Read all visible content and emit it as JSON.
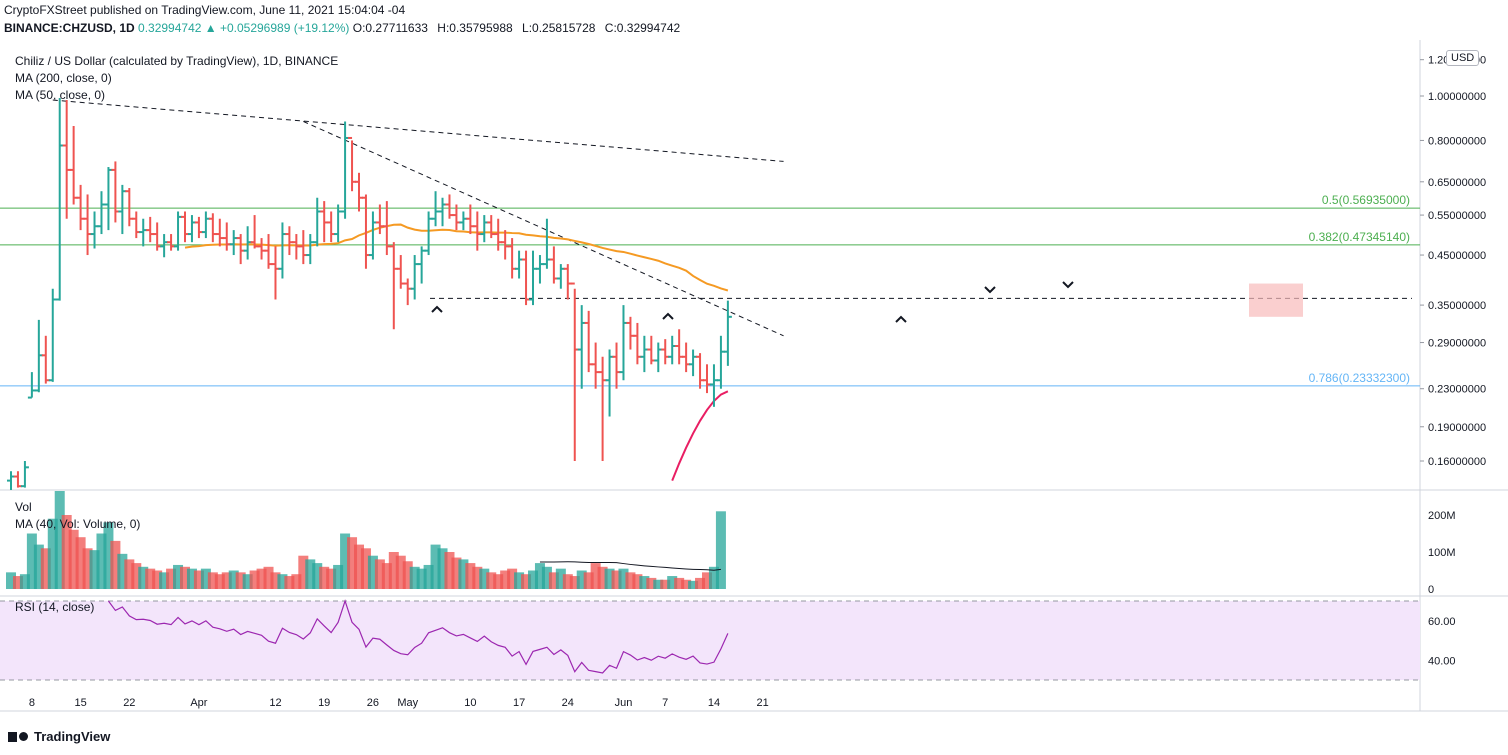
{
  "header": {
    "publish_line": "CryptoFXStreet published on TradingView.com, June 11, 2021 15:04:04 -04",
    "symbol": "BINANCE:CHZUSD, 1D",
    "change": "0.32994742 ▲ +0.05296989 (+19.12%)",
    "ohlc": {
      "o": "O:0.27711633",
      "h": "H:0.35795988",
      "l": "L:0.25815728",
      "c": "C:0.32994742"
    }
  },
  "legend": {
    "title": "Chiliz / US Dollar (calculated by TradingView), 1D, BINANCE",
    "ma200": "MA (200, close, 0)",
    "ma50": "MA (50, close, 0)",
    "vol": "Vol",
    "vol_ma": "MA (40, Vol: Volume, 0)",
    "rsi": "RSI (14, close)"
  },
  "currency": "USD",
  "brand": "TradingView",
  "colors": {
    "up": "#26a69a",
    "down": "#ef5350",
    "ma50": "#f59a23",
    "ma200": "#e91e63",
    "fib_green": "#4caf50",
    "fib_blue": "#64b5f6",
    "rsi": "#9c27b0"
  },
  "chart_data": {
    "type": "bar",
    "price_axis": {
      "scale": "log",
      "ticks": [
        0.16,
        0.19,
        0.23,
        0.29,
        0.35,
        0.45,
        0.55,
        0.65,
        0.8,
        1.0,
        1.2
      ],
      "tick_labels": [
        "0.16000000",
        "0.19000000",
        "0.23000000",
        "0.29000000",
        "0.35000000",
        "0.45000000",
        "0.55000000",
        "0.65000000",
        "0.80000000",
        "1.00000000",
        "1.20000000"
      ]
    },
    "volume_axis": {
      "ticks": [
        0,
        100,
        200
      ],
      "tick_labels": [
        "0",
        "100M",
        "200M"
      ]
    },
    "rsi_axis": {
      "ticks": [
        40,
        60
      ],
      "tick_labels": [
        "40.00",
        "60.00"
      ],
      "band": [
        30,
        70
      ]
    },
    "x_ticks": [
      {
        "label": "8",
        "date": "2021-03-08"
      },
      {
        "label": "15",
        "date": "2021-03-15"
      },
      {
        "label": "22",
        "date": "2021-03-22"
      },
      {
        "label": "Apr",
        "date": "2021-04-01"
      },
      {
        "label": "12",
        "date": "2021-04-12"
      },
      {
        "label": "19",
        "date": "2021-04-19"
      },
      {
        "label": "26",
        "date": "2021-04-26"
      },
      {
        "label": "May",
        "date": "2021-05-01"
      },
      {
        "label": "10",
        "date": "2021-05-10"
      },
      {
        "label": "17",
        "date": "2021-05-17"
      },
      {
        "label": "24",
        "date": "2021-05-24"
      },
      {
        "label": "Jun",
        "date": "2021-06-01"
      },
      {
        "label": "7",
        "date": "2021-06-07"
      },
      {
        "label": "14",
        "date": "2021-06-14"
      },
      {
        "label": "21",
        "date": "2021-06-21"
      }
    ],
    "start_date": "2021-03-05",
    "fib_levels": [
      {
        "label": "0.5(0.56935000)",
        "value": 0.56935,
        "color": "#4caf50"
      },
      {
        "label": "0.382(0.47345140)",
        "value": 0.4734514,
        "color": "#4caf50"
      },
      {
        "label": "0.786(0.23332300)",
        "value": 0.233323,
        "color": "#64b5f6"
      }
    ],
    "horizontal_support": 0.362,
    "trendlines": [
      {
        "from": [
          "2021-03-11",
          0.98
        ],
        "to": [
          "2021-06-24",
          0.72
        ]
      },
      {
        "from": [
          "2021-04-16",
          0.88
        ],
        "to": [
          "2021-06-24",
          0.3
        ]
      }
    ],
    "bars": [
      [
        0.145,
        0.152,
        0.138,
        0.148
      ],
      [
        0.148,
        0.152,
        0.14,
        0.141
      ],
      [
        0.141,
        0.16,
        0.14,
        0.155
      ],
      [
        0.22,
        0.25,
        0.22,
        0.228
      ],
      [
        0.228,
        0.325,
        0.226,
        0.272
      ],
      [
        0.272,
        0.3,
        0.236,
        0.24
      ],
      [
        0.24,
        0.38,
        0.238,
        0.36
      ],
      [
        0.36,
        0.99,
        0.358,
        0.78
      ],
      [
        0.78,
        0.98,
        0.54,
        0.69
      ],
      [
        0.69,
        0.86,
        0.58,
        0.6
      ],
      [
        0.6,
        0.64,
        0.51,
        0.54
      ],
      [
        0.54,
        0.61,
        0.45,
        0.5
      ],
      [
        0.5,
        0.56,
        0.465,
        0.52
      ],
      [
        0.52,
        0.62,
        0.5,
        0.58
      ],
      [
        0.58,
        0.7,
        0.51,
        0.69
      ],
      [
        0.69,
        0.72,
        0.53,
        0.56
      ],
      [
        0.56,
        0.64,
        0.5,
        0.62
      ],
      [
        0.62,
        0.63,
        0.52,
        0.54
      ],
      [
        0.54,
        0.56,
        0.49,
        0.505
      ],
      [
        0.505,
        0.54,
        0.47,
        0.51
      ],
      [
        0.51,
        0.545,
        0.48,
        0.5
      ],
      [
        0.5,
        0.53,
        0.46,
        0.47
      ],
      [
        0.47,
        0.5,
        0.445,
        0.48
      ],
      [
        0.48,
        0.5,
        0.46,
        0.47
      ],
      [
        0.47,
        0.56,
        0.46,
        0.545
      ],
      [
        0.545,
        0.56,
        0.48,
        0.5
      ],
      [
        0.5,
        0.55,
        0.48,
        0.53
      ],
      [
        0.53,
        0.545,
        0.49,
        0.505
      ],
      [
        0.505,
        0.56,
        0.49,
        0.54
      ],
      [
        0.54,
        0.555,
        0.48,
        0.5
      ],
      [
        0.5,
        0.54,
        0.47,
        0.49
      ],
      [
        0.49,
        0.53,
        0.46,
        0.475
      ],
      [
        0.475,
        0.51,
        0.45,
        0.49
      ],
      [
        0.49,
        0.5,
        0.43,
        0.46
      ],
      [
        0.46,
        0.52,
        0.44,
        0.48
      ],
      [
        0.48,
        0.55,
        0.465,
        0.47
      ],
      [
        0.47,
        0.49,
        0.44,
        0.46
      ],
      [
        0.46,
        0.5,
        0.42,
        0.43
      ],
      [
        0.43,
        0.47,
        0.36,
        0.42
      ],
      [
        0.42,
        0.53,
        0.4,
        0.5
      ],
      [
        0.5,
        0.52,
        0.45,
        0.48
      ],
      [
        0.48,
        0.5,
        0.44,
        0.47
      ],
      [
        0.47,
        0.51,
        0.43,
        0.45
      ],
      [
        0.45,
        0.5,
        0.43,
        0.48
      ],
      [
        0.48,
        0.6,
        0.47,
        0.56
      ],
      [
        0.56,
        0.59,
        0.48,
        0.53
      ],
      [
        0.53,
        0.56,
        0.48,
        0.5
      ],
      [
        0.5,
        0.58,
        0.48,
        0.56
      ],
      [
        0.56,
        0.88,
        0.54,
        0.81
      ],
      [
        0.81,
        0.8,
        0.62,
        0.65
      ],
      [
        0.65,
        0.68,
        0.56,
        0.6
      ],
      [
        0.6,
        0.61,
        0.42,
        0.45
      ],
      [
        0.45,
        0.56,
        0.44,
        0.53
      ],
      [
        0.53,
        0.58,
        0.5,
        0.52
      ],
      [
        0.52,
        0.59,
        0.45,
        0.47
      ],
      [
        0.47,
        0.48,
        0.31,
        0.42
      ],
      [
        0.42,
        0.45,
        0.38,
        0.39
      ],
      [
        0.39,
        0.4,
        0.35,
        0.38
      ],
      [
        0.38,
        0.45,
        0.36,
        0.43
      ],
      [
        0.43,
        0.47,
        0.39,
        0.46
      ],
      [
        0.46,
        0.56,
        0.45,
        0.54
      ],
      [
        0.54,
        0.62,
        0.52,
        0.56
      ],
      [
        0.56,
        0.6,
        0.52,
        0.58
      ],
      [
        0.58,
        0.61,
        0.54,
        0.55
      ],
      [
        0.55,
        0.58,
        0.51,
        0.53
      ],
      [
        0.53,
        0.56,
        0.51,
        0.54
      ],
      [
        0.54,
        0.58,
        0.5,
        0.52
      ],
      [
        0.52,
        0.56,
        0.46,
        0.5
      ],
      [
        0.5,
        0.55,
        0.48,
        0.53
      ],
      [
        0.53,
        0.55,
        0.49,
        0.5
      ],
      [
        0.5,
        0.54,
        0.46,
        0.48
      ],
      [
        0.48,
        0.51,
        0.44,
        0.47
      ],
      [
        0.47,
        0.49,
        0.4,
        0.42
      ],
      [
        0.42,
        0.46,
        0.4,
        0.44
      ],
      [
        0.44,
        0.46,
        0.35,
        0.36
      ],
      [
        0.36,
        0.46,
        0.35,
        0.42
      ],
      [
        0.42,
        0.45,
        0.39,
        0.43
      ],
      [
        0.43,
        0.54,
        0.42,
        0.44
      ],
      [
        0.44,
        0.47,
        0.39,
        0.4
      ],
      [
        0.4,
        0.43,
        0.38,
        0.42
      ],
      [
        0.42,
        0.43,
        0.36,
        0.39
      ],
      [
        0.39,
        0.38,
        0.16,
        0.28
      ],
      [
        0.28,
        0.35,
        0.23,
        0.32
      ],
      [
        0.32,
        0.34,
        0.25,
        0.26
      ],
      [
        0.26,
        0.29,
        0.23,
        0.25
      ],
      [
        0.25,
        0.27,
        0.16,
        0.24
      ],
      [
        0.24,
        0.28,
        0.2,
        0.27
      ],
      [
        0.27,
        0.29,
        0.23,
        0.25
      ],
      [
        0.25,
        0.35,
        0.24,
        0.32
      ],
      [
        0.32,
        0.33,
        0.28,
        0.3
      ],
      [
        0.3,
        0.32,
        0.26,
        0.27
      ],
      [
        0.27,
        0.3,
        0.25,
        0.28
      ],
      [
        0.28,
        0.3,
        0.26,
        0.265
      ],
      [
        0.265,
        0.29,
        0.25,
        0.28
      ],
      [
        0.28,
        0.295,
        0.26,
        0.27
      ],
      [
        0.27,
        0.3,
        0.26,
        0.285
      ],
      [
        0.285,
        0.31,
        0.26,
        0.27
      ],
      [
        0.27,
        0.29,
        0.25,
        0.26
      ],
      [
        0.26,
        0.28,
        0.245,
        0.27
      ],
      [
        0.27,
        0.275,
        0.23,
        0.24
      ],
      [
        0.24,
        0.26,
        0.225,
        0.235
      ],
      [
        0.235,
        0.26,
        0.21,
        0.24
      ],
      [
        0.24,
        0.3,
        0.23,
        0.277
      ],
      [
        0.277,
        0.358,
        0.258,
        0.33
      ]
    ],
    "volumes_m": [
      45,
      35,
      40,
      150,
      120,
      110,
      190,
      290,
      200,
      160,
      140,
      110,
      105,
      150,
      180,
      130,
      95,
      80,
      70,
      60,
      55,
      50,
      45,
      55,
      65,
      60,
      55,
      50,
      55,
      45,
      40,
      45,
      50,
      45,
      40,
      50,
      55,
      60,
      45,
      40,
      35,
      40,
      90,
      80,
      70,
      60,
      55,
      65,
      150,
      140,
      120,
      110,
      90,
      80,
      70,
      100,
      90,
      75,
      60,
      55,
      65,
      120,
      110,
      100,
      85,
      80,
      70,
      60,
      55,
      45,
      40,
      50,
      55,
      45,
      40,
      50,
      70,
      60,
      45,
      55,
      40,
      35,
      50,
      45,
      70,
      60,
      55,
      50,
      55,
      45,
      40,
      35,
      30,
      25,
      25,
      35,
      30,
      25,
      22,
      30,
      45,
      60,
      210
    ]
  }
}
